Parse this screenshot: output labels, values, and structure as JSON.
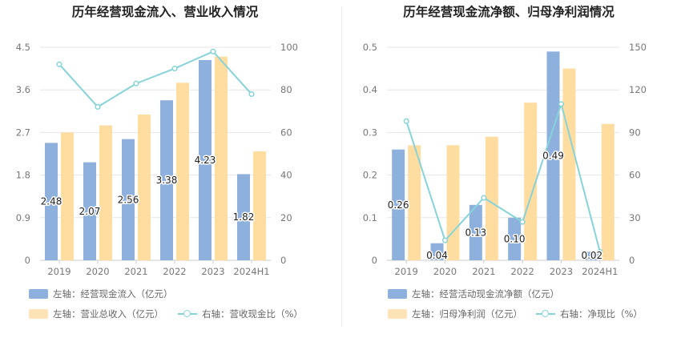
{
  "colors": {
    "bar1": "#8eb0dd",
    "bar2": "#ffdca0",
    "line": "#86d4d9",
    "grid": "#e6e6e6",
    "axis_text": "#777777",
    "title": "#222222"
  },
  "chart_data": [
    {
      "type": "bar",
      "title": "历年经营现金流入、营业收入情况",
      "categories": [
        "2019",
        "2020",
        "2021",
        "2022",
        "2023",
        "2024H1"
      ],
      "left_axis": {
        "ticks": [
          "0",
          "0.9",
          "1.8",
          "2.7",
          "3.6",
          "4.5"
        ],
        "ylim": [
          0,
          4.5
        ]
      },
      "right_axis": {
        "ticks": [
          "0",
          "20",
          "40",
          "60",
          "80",
          "100"
        ],
        "ylim": [
          0,
          100
        ]
      },
      "series": [
        {
          "name": "左轴：经营现金流入（亿元）",
          "type": "bar",
          "axis": "left",
          "values": [
            2.48,
            2.07,
            2.56,
            3.38,
            4.23,
            1.82
          ],
          "labels": [
            "2.48",
            "2.07",
            "2.56",
            "3.38",
            "4.23",
            "1.82"
          ]
        },
        {
          "name": "左轴：营业总收入（亿元）",
          "type": "bar",
          "axis": "left",
          "values": [
            2.7,
            2.85,
            3.08,
            3.75,
            4.3,
            2.3
          ]
        },
        {
          "name": "右轴：营收现金比（%）",
          "type": "line",
          "axis": "right",
          "values": [
            92,
            72,
            83,
            90,
            98,
            78
          ]
        }
      ]
    },
    {
      "type": "bar",
      "title": "历年经营现金流净额、归母净利润情况",
      "categories": [
        "2019",
        "2020",
        "2021",
        "2022",
        "2023",
        "2024H1"
      ],
      "left_axis": {
        "ticks": [
          "0",
          "0.1",
          "0.2",
          "0.3",
          "0.4",
          "0.5"
        ],
        "ylim": [
          0,
          0.5
        ]
      },
      "right_axis": {
        "ticks": [
          "0",
          "30",
          "60",
          "90",
          "120",
          "150"
        ],
        "ylim": [
          0,
          150
        ]
      },
      "series": [
        {
          "name": "左轴：经营活动现金流净额（亿元）",
          "type": "bar",
          "axis": "left",
          "values": [
            0.26,
            0.04,
            0.13,
            0.1,
            0.49,
            0.02
          ],
          "labels": [
            "0.26",
            "0.04",
            "0.13",
            "0.10",
            "0.49",
            "0.02"
          ]
        },
        {
          "name": "左轴：归母净利润（亿元）",
          "type": "bar",
          "axis": "left",
          "values": [
            0.27,
            0.27,
            0.29,
            0.37,
            0.45,
            0.32
          ]
        },
        {
          "name": "右轴：净现比（%）",
          "type": "line",
          "axis": "right",
          "values": [
            98,
            14,
            44,
            27,
            110,
            6
          ]
        }
      ]
    }
  ]
}
